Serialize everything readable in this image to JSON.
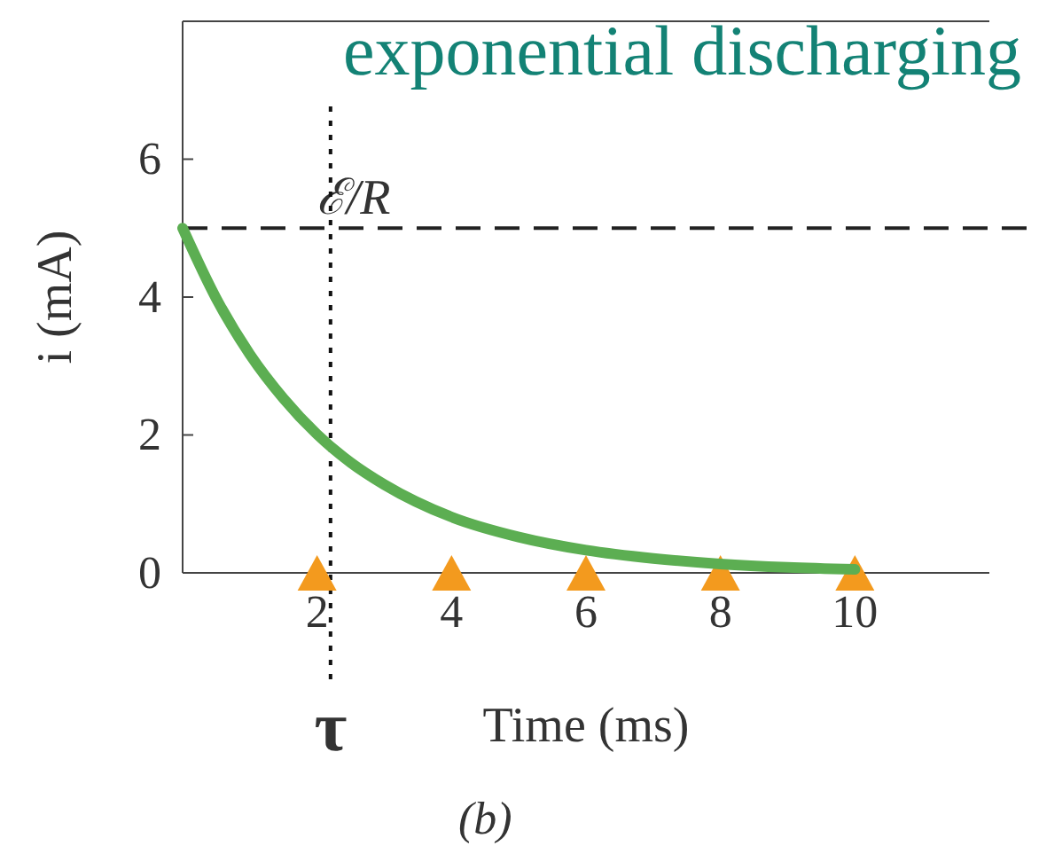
{
  "chart_data": {
    "type": "line",
    "title": "exponential discharging",
    "xlabel": "Time (ms)",
    "ylabel": "i (mA)",
    "xlim": [
      0,
      12
    ],
    "ylim": [
      0,
      8
    ],
    "xticks": [
      2,
      4,
      6,
      8,
      10
    ],
    "yticks": [
      0,
      2,
      4,
      6
    ],
    "series": [
      {
        "color": "#5cae52",
        "x": [
          0,
          0.5,
          1,
          1.5,
          2,
          2.5,
          3,
          4,
          5,
          6,
          7,
          8,
          9,
          10
        ],
        "values": [
          5,
          3.98,
          3.17,
          2.53,
          2.01,
          1.6,
          1.28,
          0.81,
          0.52,
          0.33,
          0.21,
          0.13,
          0.08,
          0.05
        ],
        "line_style": "solid"
      },
      {
        "type": "scatter",
        "color": "#f39a1e",
        "x": [
          2,
          4,
          6,
          8,
          10
        ],
        "values": [
          0,
          0,
          0,
          0,
          0
        ],
        "marker": "triangle"
      }
    ],
    "ref_lines": [
      {
        "axis": "y",
        "value": 5,
        "label": "ℰ/R",
        "line_style": "dashed",
        "color": "#222222"
      },
      {
        "axis": "x",
        "value": 2.2,
        "label": "τ",
        "line_style": "dotted",
        "color": "#111111"
      }
    ],
    "annotations": [
      "(b)"
    ]
  }
}
